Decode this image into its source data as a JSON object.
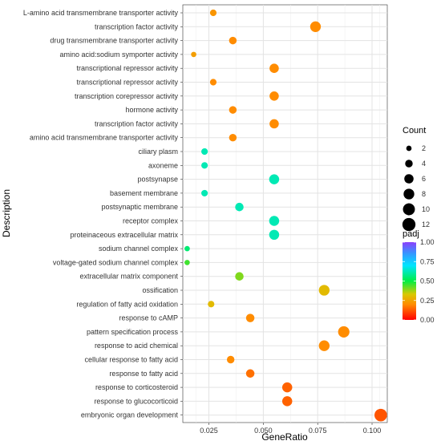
{
  "chart_data": {
    "type": "scatter",
    "xlabel": "GeneRatio",
    "ylabel": "Description",
    "xlim": [
      0.013,
      0.107
    ],
    "xticks": [
      0.025,
      0.05,
      0.075,
      0.1
    ],
    "xtick_labels": [
      "0.025",
      "0.050",
      "0.075",
      "0.100"
    ],
    "grid": true,
    "legend_placement": "right",
    "size_legend": {
      "title": "Count",
      "values": [
        2,
        4,
        6,
        8,
        10,
        12
      ]
    },
    "color_legend": {
      "title": "padj",
      "ticks": [
        1.0,
        0.75,
        0.5,
        0.25,
        0.0
      ],
      "tick_labels": [
        "1.00",
        "0.75",
        "0.50",
        "0.25",
        "0.00"
      ],
      "low_color": "#ff0000",
      "high_color": "#8a3ffc"
    },
    "points": [
      {
        "description": "L-amino acid transmembrane transporter activity",
        "gene_ratio": 0.027,
        "count": 3,
        "padj": 0.22
      },
      {
        "description": "transcription factor activity",
        "gene_ratio": 0.074,
        "count": 8,
        "padj": 0.2
      },
      {
        "description": "drug transmembrane transporter activity",
        "gene_ratio": 0.036,
        "count": 4,
        "padj": 0.2
      },
      {
        "description": "amino acid:sodium symporter activity",
        "gene_ratio": 0.018,
        "count": 2,
        "padj": 0.24
      },
      {
        "description": "transcriptional repressor activity",
        "gene_ratio": 0.055,
        "count": 6,
        "padj": 0.2
      },
      {
        "description": "transcriptional repressor activity",
        "gene_ratio": 0.027,
        "count": 3,
        "padj": 0.2
      },
      {
        "description": "transcription corepressor activity",
        "gene_ratio": 0.055,
        "count": 6,
        "padj": 0.2
      },
      {
        "description": "hormone activity",
        "gene_ratio": 0.036,
        "count": 4,
        "padj": 0.2
      },
      {
        "description": "transcription factor activity",
        "gene_ratio": 0.055,
        "count": 6,
        "padj": 0.2
      },
      {
        "description": "amino acid transmembrane transporter activity",
        "gene_ratio": 0.036,
        "count": 4,
        "padj": 0.2
      },
      {
        "description": "ciliary plasm",
        "gene_ratio": 0.023,
        "count": 3,
        "padj": 0.62
      },
      {
        "description": "axoneme",
        "gene_ratio": 0.023,
        "count": 3,
        "padj": 0.62
      },
      {
        "description": "postsynapse",
        "gene_ratio": 0.055,
        "count": 7,
        "padj": 0.62
      },
      {
        "description": "basement membrane",
        "gene_ratio": 0.023,
        "count": 3,
        "padj": 0.62
      },
      {
        "description": "postsynaptic membrane",
        "gene_ratio": 0.039,
        "count": 5,
        "padj": 0.62
      },
      {
        "description": "receptor complex",
        "gene_ratio": 0.055,
        "count": 7,
        "padj": 0.62
      },
      {
        "description": "proteinaceous extracellular matrix",
        "gene_ratio": 0.055,
        "count": 7,
        "padj": 0.62
      },
      {
        "description": "sodium channel complex",
        "gene_ratio": 0.015,
        "count": 2,
        "padj": 0.55
      },
      {
        "description": "voltage-gated sodium channel complex",
        "gene_ratio": 0.015,
        "count": 2,
        "padj": 0.45
      },
      {
        "description": "extracellular matrix component",
        "gene_ratio": 0.039,
        "count": 5,
        "padj": 0.4
      },
      {
        "description": "ossification",
        "gene_ratio": 0.078,
        "count": 8,
        "padj": 0.3
      },
      {
        "description": "regulation of fatty acid oxidation",
        "gene_ratio": 0.026,
        "count": 3,
        "padj": 0.3
      },
      {
        "description": "response to cAMP",
        "gene_ratio": 0.044,
        "count": 5,
        "padj": 0.2
      },
      {
        "description": "pattern specification process",
        "gene_ratio": 0.087,
        "count": 9,
        "padj": 0.2
      },
      {
        "description": "response to acid chemical",
        "gene_ratio": 0.078,
        "count": 8,
        "padj": 0.2
      },
      {
        "description": "cellular response to fatty acid",
        "gene_ratio": 0.035,
        "count": 4,
        "padj": 0.2
      },
      {
        "description": "response to fatty acid",
        "gene_ratio": 0.044,
        "count": 5,
        "padj": 0.16
      },
      {
        "description": "response to corticosteroid",
        "gene_ratio": 0.061,
        "count": 7,
        "padj": 0.14
      },
      {
        "description": "response to glucocorticoid",
        "gene_ratio": 0.061,
        "count": 7,
        "padj": 0.14
      },
      {
        "description": "embryonic organ development",
        "gene_ratio": 0.104,
        "count": 11,
        "padj": 0.12
      }
    ]
  }
}
